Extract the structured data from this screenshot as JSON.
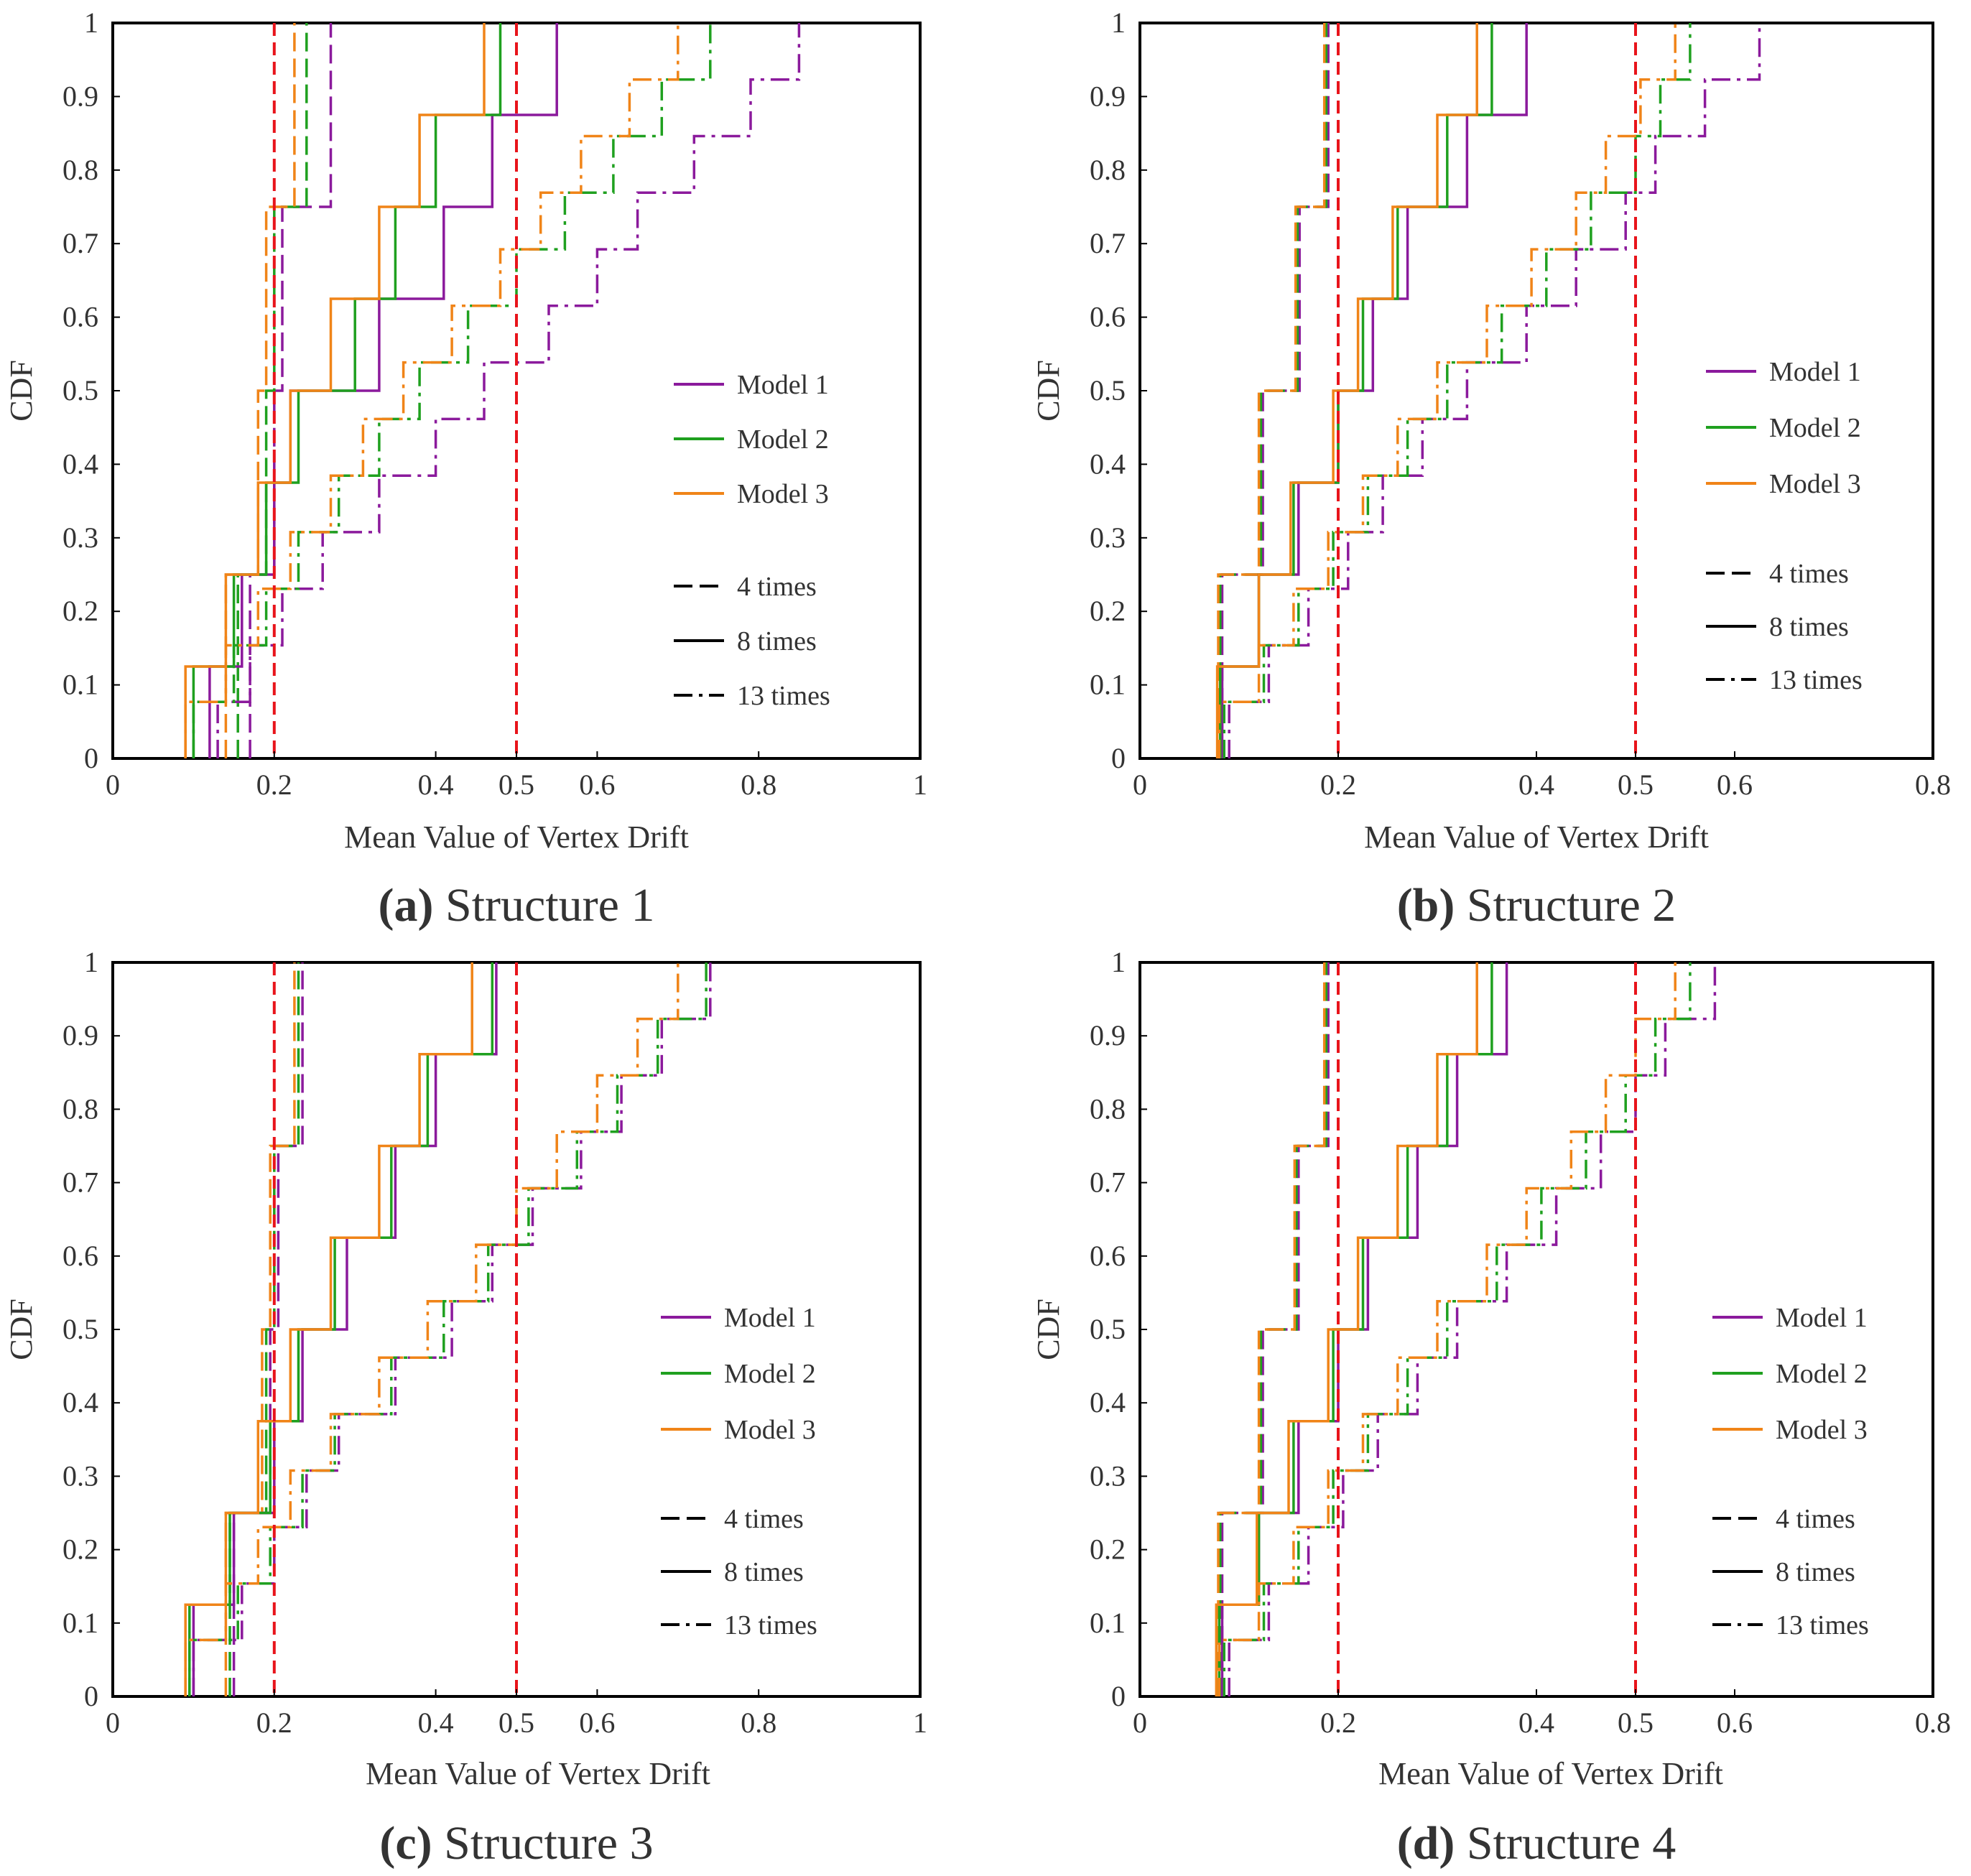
{
  "colors": {
    "Model 1": "#8B1A9C",
    "Model 2": "#1FA01F",
    "Model 3": "#F08418",
    "threshold": "#E8141B",
    "frame": "#000000"
  },
  "styles": {
    "4 times": "dash",
    "8 times": "solid",
    "13 times": "dashdot"
  },
  "legend": {
    "models": [
      "Model 1",
      "Model 2",
      "Model 3"
    ],
    "runs": [
      "4 times",
      "8 times",
      "13 times"
    ]
  },
  "chart_data": [
    {
      "type": "line",
      "caption_letter": "(a)",
      "caption_title": " Structure 1",
      "xlabel": "Mean Value of Vertex Drift",
      "ylabel": "CDF",
      "xlim": [
        0,
        1
      ],
      "ylim": [
        0,
        1
      ],
      "xticks": [
        "0",
        "0.2",
        "0.4",
        "0.5",
        "0.6",
        "0.8",
        "1"
      ],
      "yticks": [
        "0",
        "0.1",
        "0.2",
        "0.3",
        "0.4",
        "0.5",
        "0.6",
        "0.7",
        "0.8",
        "0.9",
        "1"
      ],
      "thresholds": [
        0.2,
        0.5
      ],
      "series": [
        {
          "name": "Model 1 - 4 times",
          "model": "Model 1",
          "runs": "4 times",
          "values": [
            0.17,
            0.2,
            0.21,
            0.27
          ]
        },
        {
          "name": "Model 2 - 4 times",
          "model": "Model 2",
          "runs": "4 times",
          "values": [
            0.155,
            0.19,
            0.2,
            0.24
          ]
        },
        {
          "name": "Model 3 - 4 times",
          "model": "Model 3",
          "runs": "4 times",
          "values": [
            0.14,
            0.18,
            0.19,
            0.225
          ]
        },
        {
          "name": "Model 1 - 8 times",
          "model": "Model 1",
          "runs": "8 times",
          "values": [
            0.12,
            0.16,
            0.2,
            0.22,
            0.33,
            0.41,
            0.47,
            0.55
          ]
        },
        {
          "name": "Model 2 - 8 times",
          "model": "Model 2",
          "runs": "8 times",
          "values": [
            0.1,
            0.15,
            0.19,
            0.23,
            0.3,
            0.35,
            0.4,
            0.48
          ]
        },
        {
          "name": "Model 3 - 8 times",
          "model": "Model 3",
          "runs": "8 times",
          "values": [
            0.09,
            0.14,
            0.18,
            0.22,
            0.27,
            0.33,
            0.38,
            0.46
          ]
        },
        {
          "name": "Model 1 - 13 times",
          "model": "Model 1",
          "runs": "13 times",
          "values": [
            0.13,
            0.17,
            0.21,
            0.26,
            0.33,
            0.4,
            0.46,
            0.54,
            0.6,
            0.65,
            0.72,
            0.79,
            0.85
          ]
        },
        {
          "name": "Model 2 - 13 times",
          "model": "Model 2",
          "runs": "13 times",
          "values": [
            0.1,
            0.15,
            0.19,
            0.23,
            0.28,
            0.33,
            0.38,
            0.44,
            0.5,
            0.56,
            0.62,
            0.68,
            0.74
          ]
        },
        {
          "name": "Model 3 - 13 times",
          "model": "Model 3",
          "runs": "13 times",
          "values": [
            0.09,
            0.14,
            0.18,
            0.22,
            0.27,
            0.31,
            0.36,
            0.42,
            0.48,
            0.53,
            0.58,
            0.64,
            0.7
          ]
        }
      ]
    },
    {
      "type": "line",
      "caption_letter": "(b)",
      "caption_title": " Structure 2",
      "xlabel": "Mean Value of Vertex Drift",
      "ylabel": "CDF",
      "xlim": [
        0,
        0.8
      ],
      "ylim": [
        0,
        1
      ],
      "xticks": [
        "0",
        "0.2",
        "0.4",
        "0.5",
        "0.6",
        "0.8"
      ],
      "yticks": [
        "0",
        "0.1",
        "0.2",
        "0.3",
        "0.4",
        "0.5",
        "0.6",
        "0.7",
        "0.8",
        "0.9",
        "1"
      ],
      "thresholds": [
        0.2,
        0.5
      ],
      "series": [
        {
          "name": "Model 1 - 4 times",
          "model": "Model 1",
          "runs": "4 times",
          "values": [
            0.083,
            0.124,
            0.161,
            0.19
          ]
        },
        {
          "name": "Model 2 - 4 times",
          "model": "Model 2",
          "runs": "4 times",
          "values": [
            0.081,
            0.122,
            0.159,
            0.188
          ]
        },
        {
          "name": "Model 3 - 4 times",
          "model": "Model 3",
          "runs": "4 times",
          "values": [
            0.079,
            0.12,
            0.157,
            0.186
          ]
        },
        {
          "name": "Model 1 - 8 times",
          "model": "Model 1",
          "runs": "8 times",
          "values": [
            0.083,
            0.12,
            0.16,
            0.2,
            0.235,
            0.27,
            0.33,
            0.39
          ]
        },
        {
          "name": "Model 2 - 8 times",
          "model": "Model 2",
          "runs": "8 times",
          "values": [
            0.081,
            0.12,
            0.155,
            0.2,
            0.225,
            0.26,
            0.31,
            0.355
          ]
        },
        {
          "name": "Model 3 - 8 times",
          "model": "Model 3",
          "runs": "8 times",
          "values": [
            0.078,
            0.12,
            0.152,
            0.195,
            0.22,
            0.255,
            0.3,
            0.34
          ]
        },
        {
          "name": "Model 1 - 13 times",
          "model": "Model 1",
          "runs": "13 times",
          "values": [
            0.09,
            0.13,
            0.17,
            0.21,
            0.245,
            0.285,
            0.33,
            0.39,
            0.44,
            0.49,
            0.52,
            0.57,
            0.625
          ]
        },
        {
          "name": "Model 2 - 13 times",
          "model": "Model 2",
          "runs": "13 times",
          "values": [
            0.085,
            0.125,
            0.16,
            0.195,
            0.23,
            0.27,
            0.31,
            0.365,
            0.41,
            0.455,
            0.5,
            0.525,
            0.555
          ]
        },
        {
          "name": "Model 3 - 13 times",
          "model": "Model 3",
          "runs": "13 times",
          "values": [
            0.08,
            0.12,
            0.155,
            0.19,
            0.225,
            0.26,
            0.3,
            0.35,
            0.395,
            0.44,
            0.47,
            0.505,
            0.54
          ]
        }
      ]
    },
    {
      "type": "line",
      "caption_letter": "(c)",
      "caption_title": " Structure 3",
      "xlabel": "Mean Value of Vertex Drift",
      "ylabel": "CDF",
      "xlim": [
        0,
        1
      ],
      "ylim": [
        0,
        1
      ],
      "xticks": [
        "0",
        "0.2",
        "0.4",
        "0.5",
        "0.6",
        "0.8",
        "1"
      ],
      "yticks": [
        "0",
        "0.1",
        "0.2",
        "0.3",
        "0.4",
        "0.5",
        "0.6",
        "0.7",
        "0.8",
        "0.9",
        "1"
      ],
      "thresholds": [
        0.2,
        0.5
      ],
      "series": [
        {
          "name": "Model 1 - 4 times",
          "model": "Model 1",
          "runs": "4 times",
          "values": [
            0.15,
            0.195,
            0.205,
            0.235
          ]
        },
        {
          "name": "Model 2 - 4 times",
          "model": "Model 2",
          "runs": "4 times",
          "values": [
            0.145,
            0.19,
            0.2,
            0.23
          ]
        },
        {
          "name": "Model 3 - 4 times",
          "model": "Model 3",
          "runs": "4 times",
          "values": [
            0.14,
            0.185,
            0.195,
            0.225
          ]
        },
        {
          "name": "Model 1 - 8 times",
          "model": "Model 1",
          "runs": "8 times",
          "values": [
            0.1,
            0.15,
            0.2,
            0.235,
            0.29,
            0.35,
            0.4,
            0.475
          ]
        },
        {
          "name": "Model 2 - 8 times",
          "model": "Model 2",
          "runs": "8 times",
          "values": [
            0.095,
            0.145,
            0.195,
            0.23,
            0.275,
            0.345,
            0.39,
            0.47
          ]
        },
        {
          "name": "Model 3 - 8 times",
          "model": "Model 3",
          "runs": "8 times",
          "values": [
            0.09,
            0.14,
            0.18,
            0.22,
            0.27,
            0.33,
            0.38,
            0.445
          ]
        },
        {
          "name": "Model 1 - 13 times",
          "model": "Model 1",
          "runs": "13 times",
          "values": [
            0.1,
            0.16,
            0.2,
            0.24,
            0.28,
            0.35,
            0.42,
            0.47,
            0.52,
            0.58,
            0.63,
            0.68,
            0.74
          ]
        },
        {
          "name": "Model 2 - 13 times",
          "model": "Model 2",
          "runs": "13 times",
          "values": [
            0.095,
            0.155,
            0.195,
            0.235,
            0.275,
            0.345,
            0.41,
            0.465,
            0.515,
            0.575,
            0.625,
            0.675,
            0.735
          ]
        },
        {
          "name": "Model 3 - 13 times",
          "model": "Model 3",
          "runs": "13 times",
          "values": [
            0.09,
            0.14,
            0.18,
            0.22,
            0.27,
            0.33,
            0.39,
            0.45,
            0.5,
            0.55,
            0.6,
            0.65,
            0.7
          ]
        }
      ]
    },
    {
      "type": "line",
      "caption_letter": "(d)",
      "caption_title": " Structure 4",
      "xlabel": "Mean Value of Vertex Drift",
      "ylabel": "CDF",
      "xlim": [
        0,
        0.8
      ],
      "ylim": [
        0,
        1
      ],
      "xticks": [
        "0",
        "0.2",
        "0.4",
        "0.5",
        "0.6",
        "0.8"
      ],
      "yticks": [
        "0",
        "0.1",
        "0.2",
        "0.3",
        "0.4",
        "0.5",
        "0.6",
        "0.7",
        "0.8",
        "0.9",
        "1"
      ],
      "thresholds": [
        0.2,
        0.5
      ],
      "series": [
        {
          "name": "Model 1 - 4 times",
          "model": "Model 1",
          "runs": "4 times",
          "values": [
            0.083,
            0.124,
            0.16,
            0.19
          ]
        },
        {
          "name": "Model 2 - 4 times",
          "model": "Model 2",
          "runs": "4 times",
          "values": [
            0.081,
            0.122,
            0.158,
            0.188
          ]
        },
        {
          "name": "Model 3 - 4 times",
          "model": "Model 3",
          "runs": "4 times",
          "values": [
            0.079,
            0.12,
            0.156,
            0.186
          ]
        },
        {
          "name": "Model 1 - 8 times",
          "model": "Model 1",
          "runs": "8 times",
          "values": [
            0.083,
            0.12,
            0.16,
            0.2,
            0.23,
            0.28,
            0.32,
            0.37
          ]
        },
        {
          "name": "Model 2 - 8 times",
          "model": "Model 2",
          "runs": "8 times",
          "values": [
            0.08,
            0.12,
            0.155,
            0.195,
            0.225,
            0.27,
            0.31,
            0.355
          ]
        },
        {
          "name": "Model 3 - 8 times",
          "model": "Model 3",
          "runs": "8 times",
          "values": [
            0.077,
            0.118,
            0.15,
            0.19,
            0.22,
            0.26,
            0.3,
            0.34
          ]
        },
        {
          "name": "Model 1 - 13 times",
          "model": "Model 1",
          "runs": "13 times",
          "values": [
            0.09,
            0.13,
            0.17,
            0.205,
            0.24,
            0.28,
            0.32,
            0.37,
            0.42,
            0.465,
            0.5,
            0.53,
            0.58
          ]
        },
        {
          "name": "Model 2 - 13 times",
          "model": "Model 2",
          "runs": "13 times",
          "values": [
            0.085,
            0.125,
            0.16,
            0.195,
            0.23,
            0.27,
            0.31,
            0.36,
            0.405,
            0.45,
            0.49,
            0.52,
            0.555
          ]
        },
        {
          "name": "Model 3 - 13 times",
          "model": "Model 3",
          "runs": "13 times",
          "values": [
            0.08,
            0.12,
            0.155,
            0.19,
            0.225,
            0.26,
            0.3,
            0.35,
            0.39,
            0.435,
            0.47,
            0.5,
            0.54
          ]
        }
      ]
    }
  ]
}
